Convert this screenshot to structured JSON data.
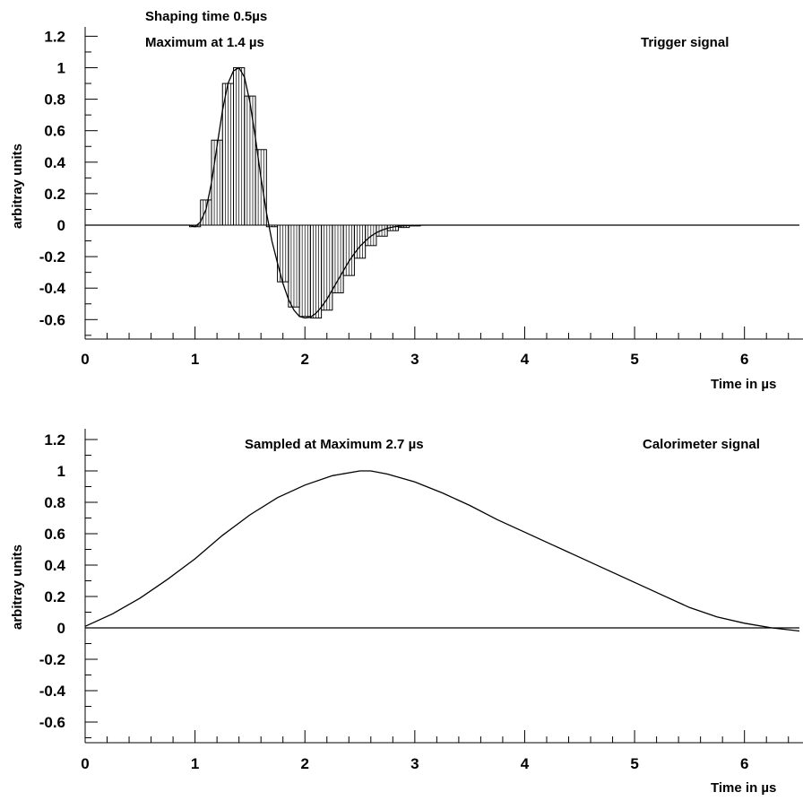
{
  "chart_data": [
    {
      "type": "line",
      "panel": "top",
      "annotations": [
        "Shaping time 0.5µs",
        "Maximum at 1.4 µs",
        "Trigger signal"
      ],
      "xlabel": "Time in µs",
      "ylabel": "arbitray units",
      "xlim": [
        0,
        6.5
      ],
      "ylim": [
        -0.72,
        1.25
      ],
      "x_ticks": [
        "0",
        "1",
        "2",
        "3",
        "4",
        "5",
        "6"
      ],
      "y_ticks": [
        "1.2",
        "1",
        "0.8",
        "0.6",
        "0.4",
        "0.2",
        "0",
        "-0.2",
        "-0.4",
        "-0.6"
      ],
      "grid": false,
      "series": [
        {
          "kind": "curve",
          "x": [
            0,
            0.95,
            1.0,
            1.05,
            1.1,
            1.15,
            1.2,
            1.25,
            1.3,
            1.35,
            1.4,
            1.45,
            1.5,
            1.55,
            1.6,
            1.65,
            1.7,
            1.75,
            1.8,
            1.85,
            1.9,
            1.95,
            2.0,
            2.05,
            2.1,
            2.15,
            2.2,
            2.25,
            2.3,
            2.35,
            2.4,
            2.45,
            2.5,
            2.55,
            2.6,
            2.65,
            2.7,
            2.75,
            2.8,
            2.85,
            2.9,
            2.95,
            3.0,
            3.1,
            6.5
          ],
          "y": [
            0,
            0,
            -0.01,
            0.02,
            0.1,
            0.27,
            0.5,
            0.73,
            0.9,
            0.98,
            1.0,
            0.94,
            0.78,
            0.55,
            0.3,
            0.08,
            -0.1,
            -0.24,
            -0.37,
            -0.47,
            -0.54,
            -0.58,
            -0.59,
            -0.585,
            -0.56,
            -0.52,
            -0.47,
            -0.41,
            -0.35,
            -0.29,
            -0.23,
            -0.18,
            -0.135,
            -0.1,
            -0.07,
            -0.048,
            -0.032,
            -0.02,
            -0.012,
            -0.007,
            -0.004,
            -0.002,
            -0.001,
            0,
            0
          ]
        },
        {
          "kind": "samples",
          "x": [
            1.0,
            1.1,
            1.2,
            1.3,
            1.4,
            1.5,
            1.6,
            1.7,
            1.8,
            1.9,
            2.0,
            2.1,
            2.2,
            2.3,
            2.4,
            2.5,
            2.6,
            2.7,
            2.8,
            2.9,
            3.0
          ],
          "y": [
            -0.01,
            0.16,
            0.54,
            0.9,
            1.0,
            0.82,
            0.48,
            -0.01,
            -0.36,
            -0.52,
            -0.58,
            -0.59,
            -0.54,
            -0.43,
            -0.32,
            -0.21,
            -0.13,
            -0.07,
            -0.035,
            -0.015,
            -0.005
          ]
        }
      ]
    },
    {
      "type": "line",
      "panel": "bottom",
      "annotations": [
        "Sampled at Maximum 2.7 µs",
        "Calorimeter signal"
      ],
      "xlabel": "Time in µs",
      "ylabel": "arbitray units",
      "xlim": [
        0,
        6.5
      ],
      "ylim": [
        -0.72,
        1.25
      ],
      "x_ticks": [
        "0",
        "1",
        "2",
        "3",
        "4",
        "5",
        "6"
      ],
      "y_ticks": [
        "1.2",
        "1",
        "0.8",
        "0.6",
        "0.4",
        "0.2",
        "0",
        "-0.2",
        "-0.4",
        "-0.6"
      ],
      "grid": false,
      "series": [
        {
          "kind": "curve",
          "x": [
            0,
            0.25,
            0.5,
            0.75,
            1.0,
            1.25,
            1.5,
            1.75,
            2.0,
            2.25,
            2.5,
            2.6,
            2.75,
            3.0,
            3.25,
            3.5,
            3.75,
            4.0,
            4.25,
            4.5,
            4.75,
            5.0,
            5.25,
            5.5,
            5.75,
            6.0,
            6.25,
            6.5
          ],
          "y": [
            0.01,
            0.09,
            0.19,
            0.31,
            0.44,
            0.59,
            0.72,
            0.83,
            0.91,
            0.97,
            1.0,
            1.0,
            0.98,
            0.93,
            0.86,
            0.78,
            0.69,
            0.61,
            0.53,
            0.45,
            0.37,
            0.29,
            0.21,
            0.13,
            0.07,
            0.03,
            0.0,
            -0.02
          ]
        },
        {
          "kind": "baseline",
          "x": [
            0,
            6.5
          ],
          "y": [
            0,
            0
          ]
        }
      ]
    }
  ]
}
